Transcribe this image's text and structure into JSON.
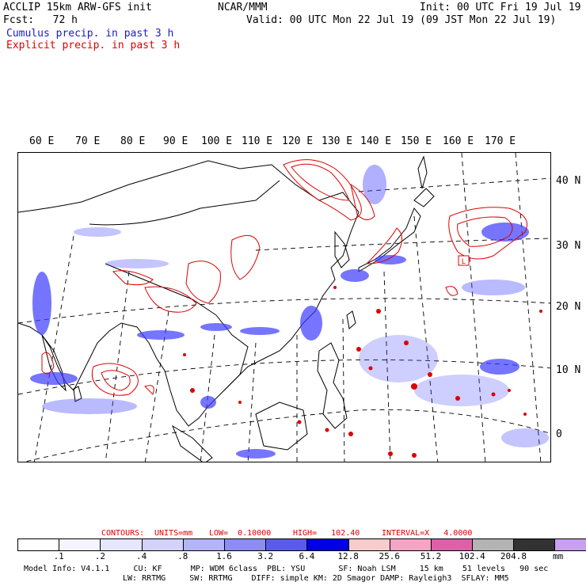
{
  "header": {
    "line1_left": "ACCLIP 15km ARW-GFS init",
    "line1_center": "NCAR/MMM",
    "line1_right": "Init: 00 UTC Fri 19 Jul 19",
    "line2_left": "Fcst:   72 h",
    "line2_right": "Valid: 00 UTC Mon 22 Jul 19 (09 JST Mon 22 Jul 19)",
    "legend_cumulus": "Cumulus precip. in past 3 h",
    "legend_explicit": "Explicit precip. in past 3 h"
  },
  "map": {
    "lon_labels": [
      "60 E",
      "70 E",
      "80 E",
      "90 E",
      "100 E",
      "110 E",
      "120 E",
      "130 E",
      "140 E",
      "150 E",
      "160 E",
      "170 E"
    ],
    "lat_labels": [
      "40 N",
      "30 N",
      "20 N",
      "10 N",
      "0"
    ],
    "low_box_label": "L",
    "colors": {
      "cumulus": "#3a3aff",
      "explicit": "#dd0000",
      "coast": "#000000"
    }
  },
  "contours_line": {
    "contours": "CONTOURS:",
    "units": "UNITS=mm",
    "low": "LOW=  0.10000",
    "high": "HIGH=   102.40",
    "interval": "INTERVAL=X   4.0000"
  },
  "colorbar": {
    "colors": [
      "#ffffff",
      "#f4f4ff",
      "#e6e6ff",
      "#d2d2fb",
      "#b4b4f8",
      "#8c8cf2",
      "#5a5aef",
      "#0000e6",
      "#f8cccc",
      "#f4a4c4",
      "#e060a8",
      "#b4b4b4",
      "#323232",
      "#c8a0f0"
    ],
    "labels": [
      ".1",
      ".2",
      ".4",
      ".8",
      "1.6",
      "3.2",
      "6.4",
      "12.8",
      "25.6",
      "51.2",
      "102.4",
      "204.8"
    ],
    "unit": "mm"
  },
  "footer": {
    "line1": "Model Info: V4.1.1     CU: KF      MP: WDM 6class  PBL: YSU       SF: Noah LSM     15 km    51 levels   90 sec",
    "line2": "LW: RRTMG     SW: RRTMG    DIFF: simple KM: 2D Smagor DAMP: Rayleigh3  SFLAY: MM5"
  }
}
